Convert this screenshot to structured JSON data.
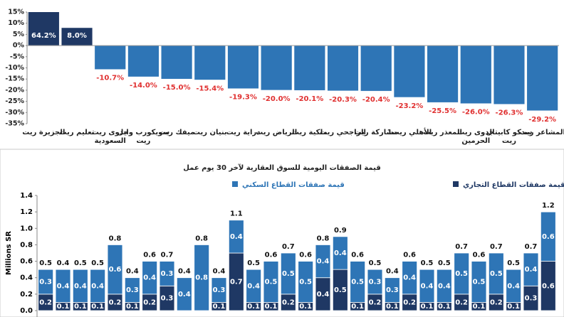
{
  "chart_data": [
    {
      "type": "bar",
      "categories": [
        "الجزيرة ريت",
        "تعليم ريت",
        "جدوى ريت السعودية",
        "سويكورب وابل ريت",
        "ميفك ريت",
        "بنيان ريت",
        "دراية ريت",
        "الرياض ريت",
        "ملكية ريت",
        "الراجحي ريت",
        "مشاركة ريت",
        "الأهلي ريت1",
        "المعذر ريت",
        "جدوى ريت الحرمين",
        "سدكو كابيتال ريت",
        "المشاعر ريت"
      ],
      "values": [
        64.2,
        8.0,
        -10.7,
        -14.0,
        -15.0,
        -15.4,
        -19.3,
        -20.0,
        -20.1,
        -20.3,
        -20.4,
        -23.2,
        -25.5,
        -26.0,
        -26.3,
        -29.2
      ],
      "value_labels": [
        "64.2%",
        "8.0%",
        "-10.7%",
        "-14.0%",
        "-15.0%",
        "-15.4%",
        "-19.3%",
        "-20.0%",
        "-20.1%",
        "-20.3%",
        "-20.4%",
        "-23.2%",
        "-25.5%",
        "-26.0%",
        "-26.3%",
        "-29.2%"
      ],
      "colors": {
        "positive": "#1f3864",
        "negative": "#2e75b6"
      },
      "ylim": [
        -35,
        15
      ],
      "yticks": [
        {
          "value": 15,
          "label": "15%"
        },
        {
          "value": 10,
          "label": "10%"
        },
        {
          "value": 5,
          "label": "5%"
        },
        {
          "value": 0,
          "label": "0%"
        },
        {
          "value": -5,
          "label": "-5%"
        },
        {
          "value": -10,
          "label": "-10%"
        },
        {
          "value": -15,
          "label": "-15%"
        },
        {
          "value": -20,
          "label": "-20%"
        },
        {
          "value": -25,
          "label": "-25%"
        },
        {
          "value": -30,
          "label": "-30%"
        },
        {
          "value": -35,
          "label": "-35%"
        }
      ],
      "grid": false
    },
    {
      "type": "stacked_bar",
      "title": "قيمة الصفقات اليومية للسوق العقارية لآخر 30 يوم عمل",
      "y_label": "Millions SR",
      "series": [
        {
          "name": "قيمة صفقات القطاع التجاري",
          "color": "#1f3864",
          "values": [
            0.2,
            0.1,
            0.1,
            0.1,
            0.2,
            0.1,
            0.2,
            0.3,
            0.0,
            0.0,
            0.1,
            0.7,
            0.1,
            0.1,
            0.2,
            0.1,
            0.4,
            0.5,
            0.1,
            0.2,
            0.1,
            0.2,
            0.1,
            0.1,
            0.2,
            0.1,
            0.2,
            0.1,
            0.3,
            0.6
          ],
          "value_labels": [
            "0.2",
            "0.1",
            "0.1",
            "0.1",
            "0.2",
            "0.1",
            "0.2",
            "0.3",
            "0.0",
            "0.0",
            "0.1",
            "0.7",
            "0.1",
            "0.1",
            "0.2",
            "0.1",
            "0.4",
            "0.5",
            "0.1",
            "0.2",
            "0.1",
            "0.2",
            "0.1",
            "0.1",
            "0.2",
            "0.1",
            "0.2",
            "0.1",
            "0.3",
            "0.6"
          ]
        },
        {
          "name": "قيمة صفقات القطاع السكني",
          "color": "#2e75b6",
          "values": [
            0.3,
            0.4,
            0.4,
            0.4,
            0.6,
            0.3,
            0.4,
            0.3,
            0.4,
            0.8,
            0.3,
            0.4,
            0.4,
            0.5,
            0.5,
            0.5,
            0.4,
            0.4,
            0.5,
            0.3,
            0.3,
            0.4,
            0.4,
            0.4,
            0.5,
            0.5,
            0.5,
            0.4,
            0.4,
            0.6
          ]
        }
      ],
      "totals": [
        0.5,
        0.4,
        0.5,
        0.5,
        0.8,
        0.4,
        0.6,
        0.7,
        0.4,
        0.8,
        0.4,
        1.1,
        0.5,
        0.6,
        0.7,
        0.6,
        0.8,
        0.9,
        0.6,
        0.5,
        0.4,
        0.6,
        0.5,
        0.5,
        0.7,
        0.6,
        0.7,
        0.5,
        0.7,
        1.2
      ],
      "ylim": [
        0,
        1.4
      ],
      "yticks": [
        {
          "value": 0,
          "label": "0.0"
        },
        0.2,
        0.4,
        0.6,
        0.8,
        {
          "value": 1,
          "label": "1.0"
        },
        1.2,
        1.4
      ],
      "legend": "top"
    }
  ]
}
